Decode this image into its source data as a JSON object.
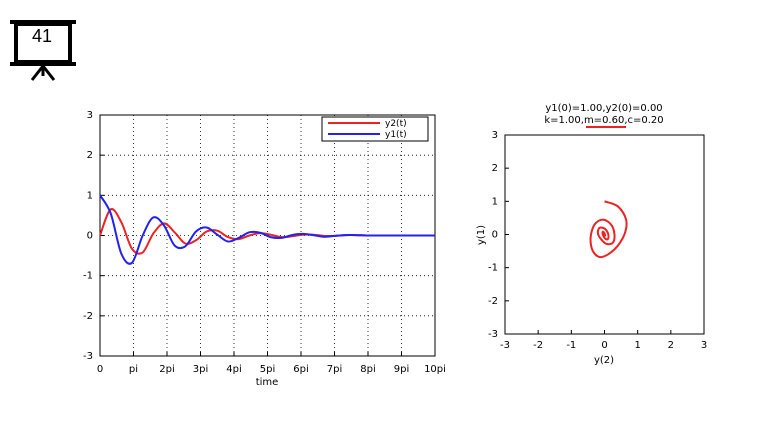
{
  "slide": {
    "number": "41"
  },
  "chart_data": [
    {
      "type": "line",
      "title": "",
      "xlabel": "time",
      "ylabel": "",
      "xlim": [
        0,
        31.4159
      ],
      "ylim": [
        -3,
        3
      ],
      "grid": true,
      "legend_position": "top-right",
      "x_ticks": [
        {
          "value": 0,
          "label": "0"
        },
        {
          "value": 3.1416,
          "label": "pi"
        },
        {
          "value": 6.2832,
          "label": "2pi"
        },
        {
          "value": 9.4248,
          "label": "3pi"
        },
        {
          "value": 12.5664,
          "label": "4pi"
        },
        {
          "value": 15.708,
          "label": "5pi"
        },
        {
          "value": 18.8496,
          "label": "6pi"
        },
        {
          "value": 21.9911,
          "label": "7pi"
        },
        {
          "value": 25.1327,
          "label": "8pi"
        },
        {
          "value": 28.2743,
          "label": "9pi"
        },
        {
          "value": 31.4159,
          "label": "10pi"
        }
      ],
      "y_ticks": [
        {
          "value": 3,
          "label": "3"
        },
        {
          "value": 2,
          "label": "2"
        },
        {
          "value": 1,
          "label": "1"
        },
        {
          "value": 0,
          "label": "0"
        },
        {
          "value": -1,
          "label": "-1"
        },
        {
          "value": -2,
          "label": "-2"
        },
        {
          "value": -3,
          "label": "-3"
        }
      ],
      "x": [
        0,
        1,
        2,
        3,
        4,
        5,
        6,
        7,
        8,
        9,
        10,
        11,
        12,
        13,
        14,
        15,
        16,
        17,
        18,
        19,
        20,
        21,
        22,
        23,
        24,
        25,
        26,
        27,
        28,
        29,
        30,
        31,
        31.4
      ],
      "series": [
        {
          "name": "y2(t)",
          "color": "#ee2222",
          "values": [
            0.0,
            0.65,
            0.33,
            -0.33,
            -0.42,
            0.05,
            0.3,
            0.08,
            -0.2,
            -0.12,
            0.1,
            0.12,
            -0.04,
            -0.09,
            0.0,
            0.06,
            0.02,
            -0.04,
            -0.02,
            0.02,
            0.02,
            -0.01,
            -0.01,
            0.01,
            0.01,
            0.0,
            0.0,
            0.0,
            0.0,
            0.0,
            0.0,
            0.0,
            0.0
          ]
        },
        {
          "name": "y1(t)",
          "color": "#2222ee",
          "values": [
            1.0,
            0.55,
            -0.45,
            -0.68,
            0.0,
            0.45,
            0.25,
            -0.25,
            -0.27,
            0.1,
            0.2,
            0.02,
            -0.15,
            -0.06,
            0.08,
            0.07,
            -0.04,
            -0.06,
            0.01,
            0.04,
            0.01,
            -0.03,
            -0.01,
            0.01,
            0.01,
            0.0,
            0.0,
            0.0,
            0.0,
            0.0,
            0.0,
            0.0,
            0.0
          ]
        }
      ]
    },
    {
      "type": "line",
      "title": "y1(0)=1.00,y2(0)=0.00",
      "subtitle": "k=1.00,m=0.60,c=0.20",
      "xlabel": "y(2)",
      "ylabel": "y(1)",
      "xlim": [
        -3,
        3
      ],
      "ylim": [
        -3,
        3
      ],
      "grid": false,
      "legend_position": "top-center",
      "x_ticks": [
        {
          "value": -3,
          "label": "-3"
        },
        {
          "value": -2,
          "label": "-2"
        },
        {
          "value": -1,
          "label": "-1"
        },
        {
          "value": 0,
          "label": "0"
        },
        {
          "value": 1,
          "label": "1"
        },
        {
          "value": 2,
          "label": "2"
        },
        {
          "value": 3,
          "label": "3"
        }
      ],
      "y_ticks": [
        {
          "value": 3,
          "label": "3"
        },
        {
          "value": 2,
          "label": "2"
        },
        {
          "value": 1,
          "label": "1"
        },
        {
          "value": 0,
          "label": "0"
        },
        {
          "value": -1,
          "label": "-1"
        },
        {
          "value": -2,
          "label": "-2"
        },
        {
          "value": -3,
          "label": "-3"
        }
      ],
      "series": [
        {
          "color": "#ee2222",
          "x": [
            0.0,
            0.4,
            0.65,
            0.6,
            0.3,
            -0.1,
            -0.35,
            -0.42,
            -0.3,
            -0.05,
            0.2,
            0.3,
            0.25,
            0.05,
            -0.12,
            -0.2,
            -0.15,
            0.0,
            0.1,
            0.12,
            0.08,
            0.0,
            -0.05,
            -0.06,
            -0.03,
            0.0,
            0.02,
            0.01,
            0.0
          ],
          "y": [
            1.0,
            0.85,
            0.45,
            0.0,
            -0.45,
            -0.68,
            -0.5,
            -0.1,
            0.3,
            0.45,
            0.3,
            0.0,
            -0.25,
            -0.28,
            -0.12,
            0.05,
            0.2,
            0.18,
            0.05,
            -0.08,
            -0.15,
            -0.1,
            0.0,
            0.07,
            0.08,
            0.03,
            -0.03,
            -0.02,
            0.0
          ]
        }
      ]
    }
  ]
}
